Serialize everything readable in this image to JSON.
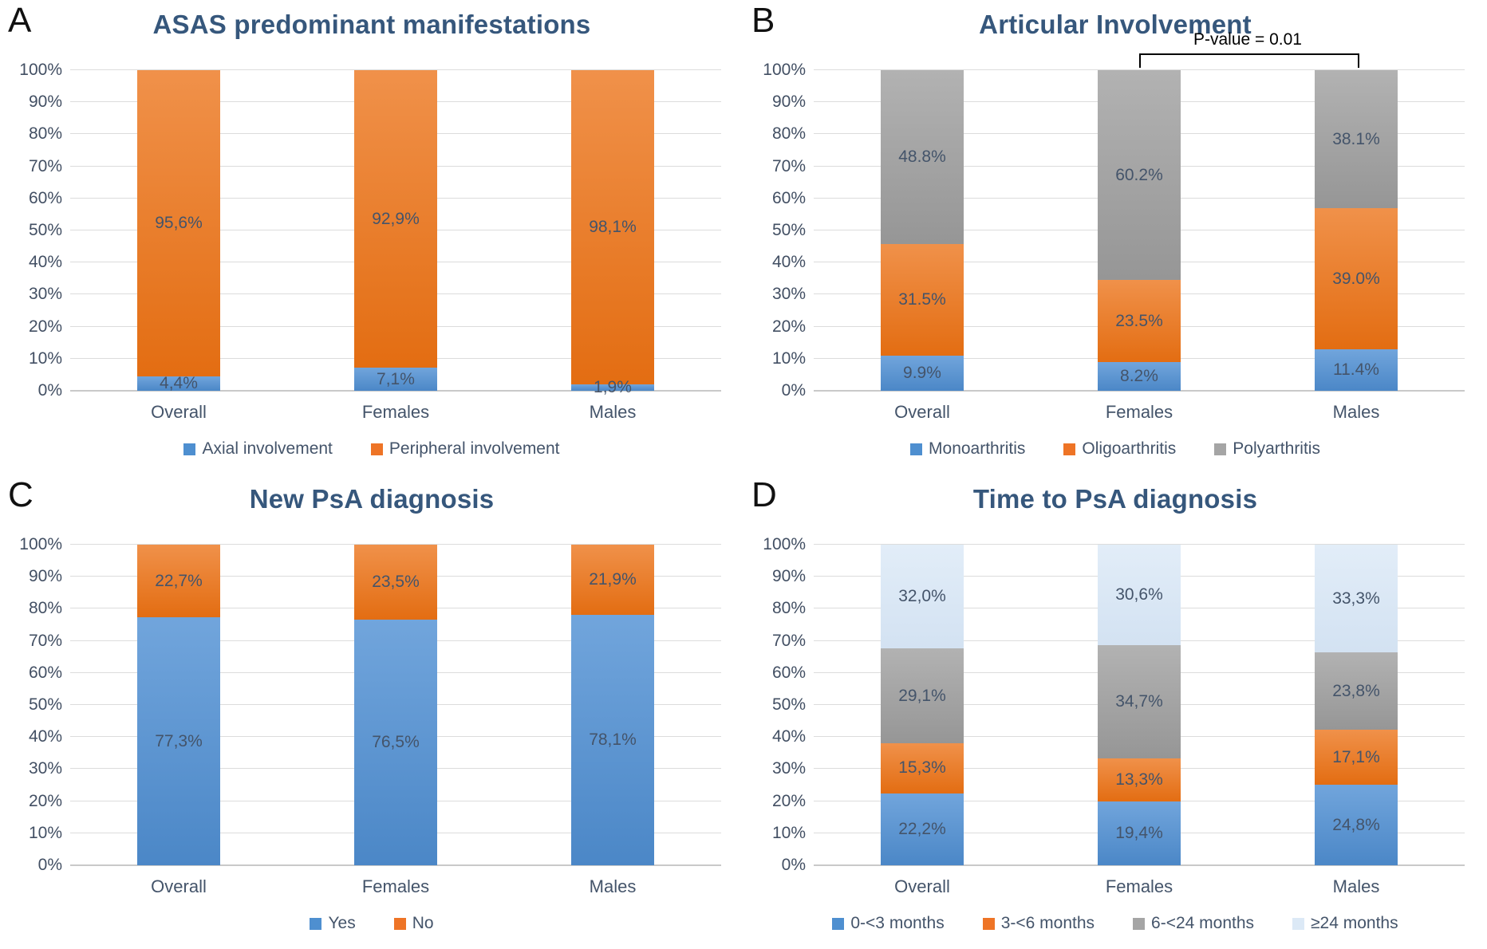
{
  "colors": {
    "blue": "#4e8fd0",
    "orange": "#ee7426",
    "gray": "#a5a5a5",
    "lightblue": "#dce9f6",
    "title_text": "#36577c",
    "label_text": "#44546a",
    "gridline": "#dcdcdc",
    "annotation_text": "#000000"
  },
  "chart_data": [
    {
      "panel_label": "A",
      "type": "bar",
      "subtype": "stacked-100-percent",
      "title": "ASAS predominant manifestations",
      "categories": [
        "Overall",
        "Females",
        "Males"
      ],
      "y_ticks": [
        "100%",
        "90%",
        "80%",
        "70%",
        "60%",
        "50%",
        "40%",
        "30%",
        "20%",
        "10%",
        "0%"
      ],
      "ylim": [
        0,
        100
      ],
      "grid": true,
      "legend_position": "bottom",
      "series": [
        {
          "name": "Axial involvement",
          "color": "blue",
          "values": [
            4.4,
            7.1,
            1.9
          ],
          "labels": [
            "4,4%",
            "7,1%",
            "1,9%"
          ]
        },
        {
          "name": "Peripheral involvement",
          "color": "orange",
          "values": [
            95.6,
            92.9,
            98.1
          ],
          "labels": [
            "95,6%",
            "92,9%",
            "98,1%"
          ]
        }
      ],
      "annotation": null
    },
    {
      "panel_label": "B",
      "type": "bar",
      "subtype": "stacked-100-percent",
      "title": "Articular Involvement",
      "categories": [
        "Overall",
        "Females",
        "Males"
      ],
      "y_ticks": [
        "100%",
        "90%",
        "80%",
        "70%",
        "60%",
        "50%",
        "40%",
        "30%",
        "20%",
        "10%",
        "0%"
      ],
      "ylim": [
        0,
        100
      ],
      "grid": true,
      "legend_position": "bottom",
      "series": [
        {
          "name": "Monoarthritis",
          "color": "blue",
          "values": [
            9.9,
            8.2,
            11.4
          ],
          "labels": [
            "9.9%",
            "8.2%",
            "11.4%"
          ]
        },
        {
          "name": "Oligoarthritis",
          "color": "orange",
          "values": [
            31.5,
            23.5,
            39.0
          ],
          "labels": [
            "31.5%",
            "23.5%",
            "39.0%"
          ]
        },
        {
          "name": "Polyarthritis",
          "color": "gray",
          "values": [
            48.8,
            60.2,
            38.1
          ],
          "labels": [
            "48.8%",
            "60.2%",
            "38.1%"
          ]
        }
      ],
      "annotation": {
        "text": "P-value = 0.01",
        "from_category": "Females",
        "to_category": "Males"
      }
    },
    {
      "panel_label": "C",
      "type": "bar",
      "subtype": "stacked-100-percent",
      "title": "New PsA diagnosis",
      "categories": [
        "Overall",
        "Females",
        "Males"
      ],
      "y_ticks": [
        "100%",
        "90%",
        "80%",
        "70%",
        "60%",
        "50%",
        "40%",
        "30%",
        "20%",
        "10%",
        "0%"
      ],
      "ylim": [
        0,
        100
      ],
      "grid": true,
      "legend_position": "bottom",
      "series": [
        {
          "name": "Yes",
          "color": "blue",
          "values": [
            77.3,
            76.5,
            78.1
          ],
          "labels": [
            "77,3%",
            "76,5%",
            "78,1%"
          ]
        },
        {
          "name": "No",
          "color": "orange",
          "values": [
            22.7,
            23.5,
            21.9
          ],
          "labels": [
            "22,7%",
            "23,5%",
            "21,9%"
          ]
        }
      ],
      "annotation": null
    },
    {
      "panel_label": "D",
      "type": "bar",
      "subtype": "stacked-100-percent",
      "title": "Time to PsA diagnosis",
      "categories": [
        "Overall",
        "Females",
        "Males"
      ],
      "y_ticks": [
        "100%",
        "90%",
        "80%",
        "70%",
        "60%",
        "50%",
        "40%",
        "30%",
        "20%",
        "10%",
        "0%"
      ],
      "ylim": [
        0,
        100
      ],
      "grid": true,
      "legend_position": "bottom",
      "series": [
        {
          "name": "0-<3 months",
          "color": "blue",
          "values": [
            22.2,
            19.4,
            24.8
          ],
          "labels": [
            "22,2%",
            "19,4%",
            "24,8%"
          ]
        },
        {
          "name": "3-<6 months",
          "color": "orange",
          "values": [
            15.3,
            13.3,
            17.1
          ],
          "labels": [
            "15,3%",
            "13,3%",
            "17,1%"
          ]
        },
        {
          "name": "6-<24 months",
          "color": "gray",
          "values": [
            29.1,
            34.7,
            23.8
          ],
          "labels": [
            "29,1%",
            "34,7%",
            "23,8%"
          ]
        },
        {
          "name": "≥24 months",
          "color": "lightblue",
          "values": [
            32.0,
            30.6,
            33.3
          ],
          "labels": [
            "32,0%",
            "30,6%",
            "33,3%"
          ]
        }
      ],
      "annotation": null
    }
  ]
}
